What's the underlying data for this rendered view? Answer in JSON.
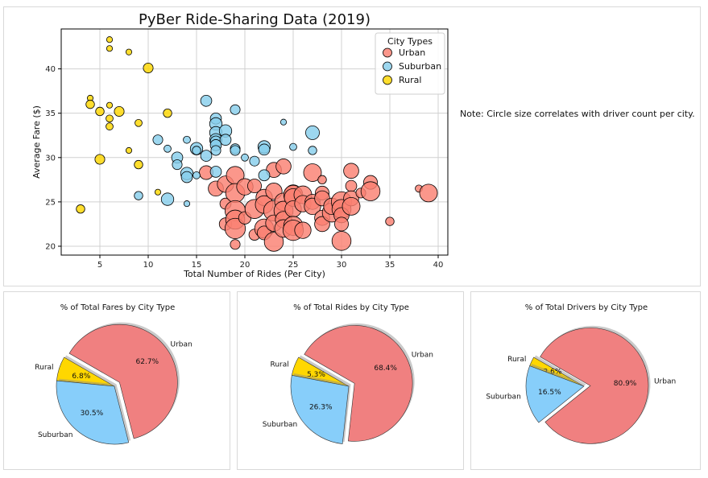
{
  "chart_data": [
    {
      "type": "scatter",
      "title": "PyBer Ride-Sharing Data (2019)",
      "xlabel": "Total Number of Rides (Per City)",
      "ylabel": "Average Fare ($)",
      "xlim": [
        1,
        41
      ],
      "ylim": [
        19,
        44.5
      ],
      "xticks": [
        5,
        10,
        15,
        20,
        25,
        30,
        35,
        40
      ],
      "yticks": [
        20,
        25,
        30,
        35,
        40
      ],
      "grid": true,
      "legend": {
        "title": "City Types",
        "position": "top-right",
        "entries": [
          "Urban",
          "Suburban",
          "Rural"
        ]
      },
      "note": "Note: Circle size correlates with driver count per city.",
      "series": [
        {
          "name": "Urban",
          "color": "#FA8072",
          "points": [
            [
              16,
              28.3,
              8
            ],
            [
              17,
              26.5,
              9
            ],
            [
              18,
              27,
              10
            ],
            [
              18,
              24.8,
              6
            ],
            [
              18,
              22.5,
              7
            ],
            [
              19,
              28,
              11
            ],
            [
              19,
              26,
              12
            ],
            [
              19,
              24,
              13
            ],
            [
              19,
              23,
              12
            ],
            [
              19,
              22,
              13
            ],
            [
              19,
              20.2,
              5
            ],
            [
              20,
              26.7,
              10
            ],
            [
              20,
              23.2,
              7
            ],
            [
              21,
              26.8,
              8
            ],
            [
              21,
              24.2,
              12
            ],
            [
              21,
              21.3,
              6
            ],
            [
              22,
              25.5,
              10
            ],
            [
              22,
              24.7,
              11
            ],
            [
              22,
              22,
              12
            ],
            [
              22,
              21.5,
              8
            ],
            [
              23,
              28.6,
              9
            ],
            [
              23,
              26.2,
              10
            ],
            [
              23,
              24,
              13
            ],
            [
              23,
              22.6,
              10
            ],
            [
              23,
              20.5,
              12
            ],
            [
              24,
              29,
              9
            ],
            [
              24,
              25,
              11
            ],
            [
              24,
              24,
              12
            ],
            [
              24,
              23,
              10
            ],
            [
              24,
              22,
              11
            ],
            [
              25,
              26,
              10
            ],
            [
              25,
              25.8,
              12
            ],
            [
              25,
              25.5,
              11
            ],
            [
              25,
              24.2,
              10
            ],
            [
              25,
              22.3,
              12
            ],
            [
              25,
              21.8,
              13
            ],
            [
              26,
              25.8,
              11
            ],
            [
              26,
              24.8,
              10
            ],
            [
              26,
              21.8,
              10
            ],
            [
              27,
              28.3,
              11
            ],
            [
              27,
              25,
              9
            ],
            [
              27,
              24.5,
              10
            ],
            [
              28,
              27.5,
              4
            ],
            [
              28,
              26,
              8
            ],
            [
              28,
              25.4,
              9
            ],
            [
              28,
              23.2,
              9
            ],
            [
              28,
              22.5,
              9
            ],
            [
              29,
              23.8,
              12
            ],
            [
              29,
              24.5,
              10
            ],
            [
              30,
              25,
              13
            ],
            [
              30,
              24.2,
              12
            ],
            [
              30,
              23.5,
              9
            ],
            [
              30,
              22.5,
              8
            ],
            [
              30,
              20.6,
              12
            ],
            [
              31,
              28.5,
              9
            ],
            [
              31,
              26.8,
              6
            ],
            [
              31,
              25.4,
              9
            ],
            [
              31,
              24.5,
              11
            ],
            [
              32,
              26,
              5
            ],
            [
              33,
              27.2,
              8
            ],
            [
              33,
              26.2,
              12
            ],
            [
              35,
              22.8,
              4
            ],
            [
              38,
              26.5,
              3
            ],
            [
              39,
              26,
              11
            ]
          ]
        },
        {
          "name": "Suburban",
          "color": "#87CEEB",
          "points": [
            [
              9,
              25.7,
              4
            ],
            [
              11,
              32,
              5
            ],
            [
              12,
              31,
              3
            ],
            [
              12,
              25.3,
              7
            ],
            [
              13,
              30,
              6
            ],
            [
              13,
              29.2,
              5
            ],
            [
              14,
              28.2,
              7
            ],
            [
              14,
              27.8,
              6
            ],
            [
              14,
              32,
              3
            ],
            [
              14,
              24.8,
              2
            ],
            [
              15,
              31,
              7
            ],
            [
              15,
              28,
              3
            ],
            [
              15,
              30.8,
              4
            ],
            [
              16,
              36.4,
              6
            ],
            [
              16,
              30.2,
              6
            ],
            [
              17,
              34.4,
              6
            ],
            [
              17,
              33.8,
              7
            ],
            [
              17,
              32.8,
              7
            ],
            [
              17,
              32,
              7
            ],
            [
              17,
              31.8,
              6
            ],
            [
              17,
              31.4,
              6
            ],
            [
              17,
              30.8,
              5
            ],
            [
              17,
              28.4,
              6
            ],
            [
              18,
              33,
              7
            ],
            [
              18,
              32,
              6
            ],
            [
              19,
              31,
              5
            ],
            [
              19,
              35.4,
              5
            ],
            [
              19,
              30.8,
              5
            ],
            [
              20,
              30,
              3
            ],
            [
              21,
              29.6,
              5
            ],
            [
              22,
              31.2,
              7
            ],
            [
              22,
              30.9,
              6
            ],
            [
              22,
              28,
              6
            ],
            [
              24,
              34,
              2
            ],
            [
              25,
              31.2,
              3
            ],
            [
              27,
              32.8,
              8
            ],
            [
              27,
              30.8,
              4
            ]
          ]
        },
        {
          "name": "Rural",
          "color": "#FFD700",
          "points": [
            [
              3,
              24.2,
              4
            ],
            [
              4,
              36.7,
              2
            ],
            [
              4,
              36,
              4
            ],
            [
              5,
              35.2,
              4
            ],
            [
              5,
              29.8,
              5
            ],
            [
              6,
              43.3,
              2
            ],
            [
              6,
              42.3,
              2
            ],
            [
              6,
              35.9,
              2
            ],
            [
              6,
              34.4,
              3
            ],
            [
              6,
              33.5,
              3
            ],
            [
              7,
              35.2,
              5
            ],
            [
              8,
              41.9,
              2
            ],
            [
              8,
              30.8,
              2
            ],
            [
              9,
              33.9,
              3
            ],
            [
              9,
              29.2,
              4
            ],
            [
              10,
              40.1,
              5
            ],
            [
              11,
              26.1,
              2
            ],
            [
              12,
              35,
              4
            ]
          ]
        }
      ]
    },
    {
      "type": "pie",
      "title": "% of Total Fares by City Type",
      "slices": [
        {
          "label": "Rural",
          "value": 6.8,
          "color": "#FFD700",
          "percent": "6.8%"
        },
        {
          "label": "Suburban",
          "value": 30.5,
          "color": "#87CEFA",
          "percent": "30.5%"
        },
        {
          "label": "Urban",
          "value": 62.7,
          "color": "#F08080",
          "percent": "62.7%",
          "explode": true
        }
      ]
    },
    {
      "type": "pie",
      "title": "% of Total Rides by City Type",
      "slices": [
        {
          "label": "Rural",
          "value": 5.3,
          "color": "#FFD700",
          "percent": "5.3%"
        },
        {
          "label": "Suburban",
          "value": 26.3,
          "color": "#87CEFA",
          "percent": "26.3%"
        },
        {
          "label": "Urban",
          "value": 68.4,
          "color": "#F08080",
          "percent": "68.4%",
          "explode": true
        }
      ]
    },
    {
      "type": "pie",
      "title": "% of Total Drivers by City Type",
      "slices": [
        {
          "label": "Rural",
          "value": 2.6,
          "color": "#FFD700",
          "percent": "2.6%"
        },
        {
          "label": "Suburban",
          "value": 16.5,
          "color": "#87CEFA",
          "percent": "16.5%"
        },
        {
          "label": "Urban",
          "value": 80.9,
          "color": "#F08080",
          "percent": "80.9%",
          "explode": true
        }
      ]
    }
  ]
}
